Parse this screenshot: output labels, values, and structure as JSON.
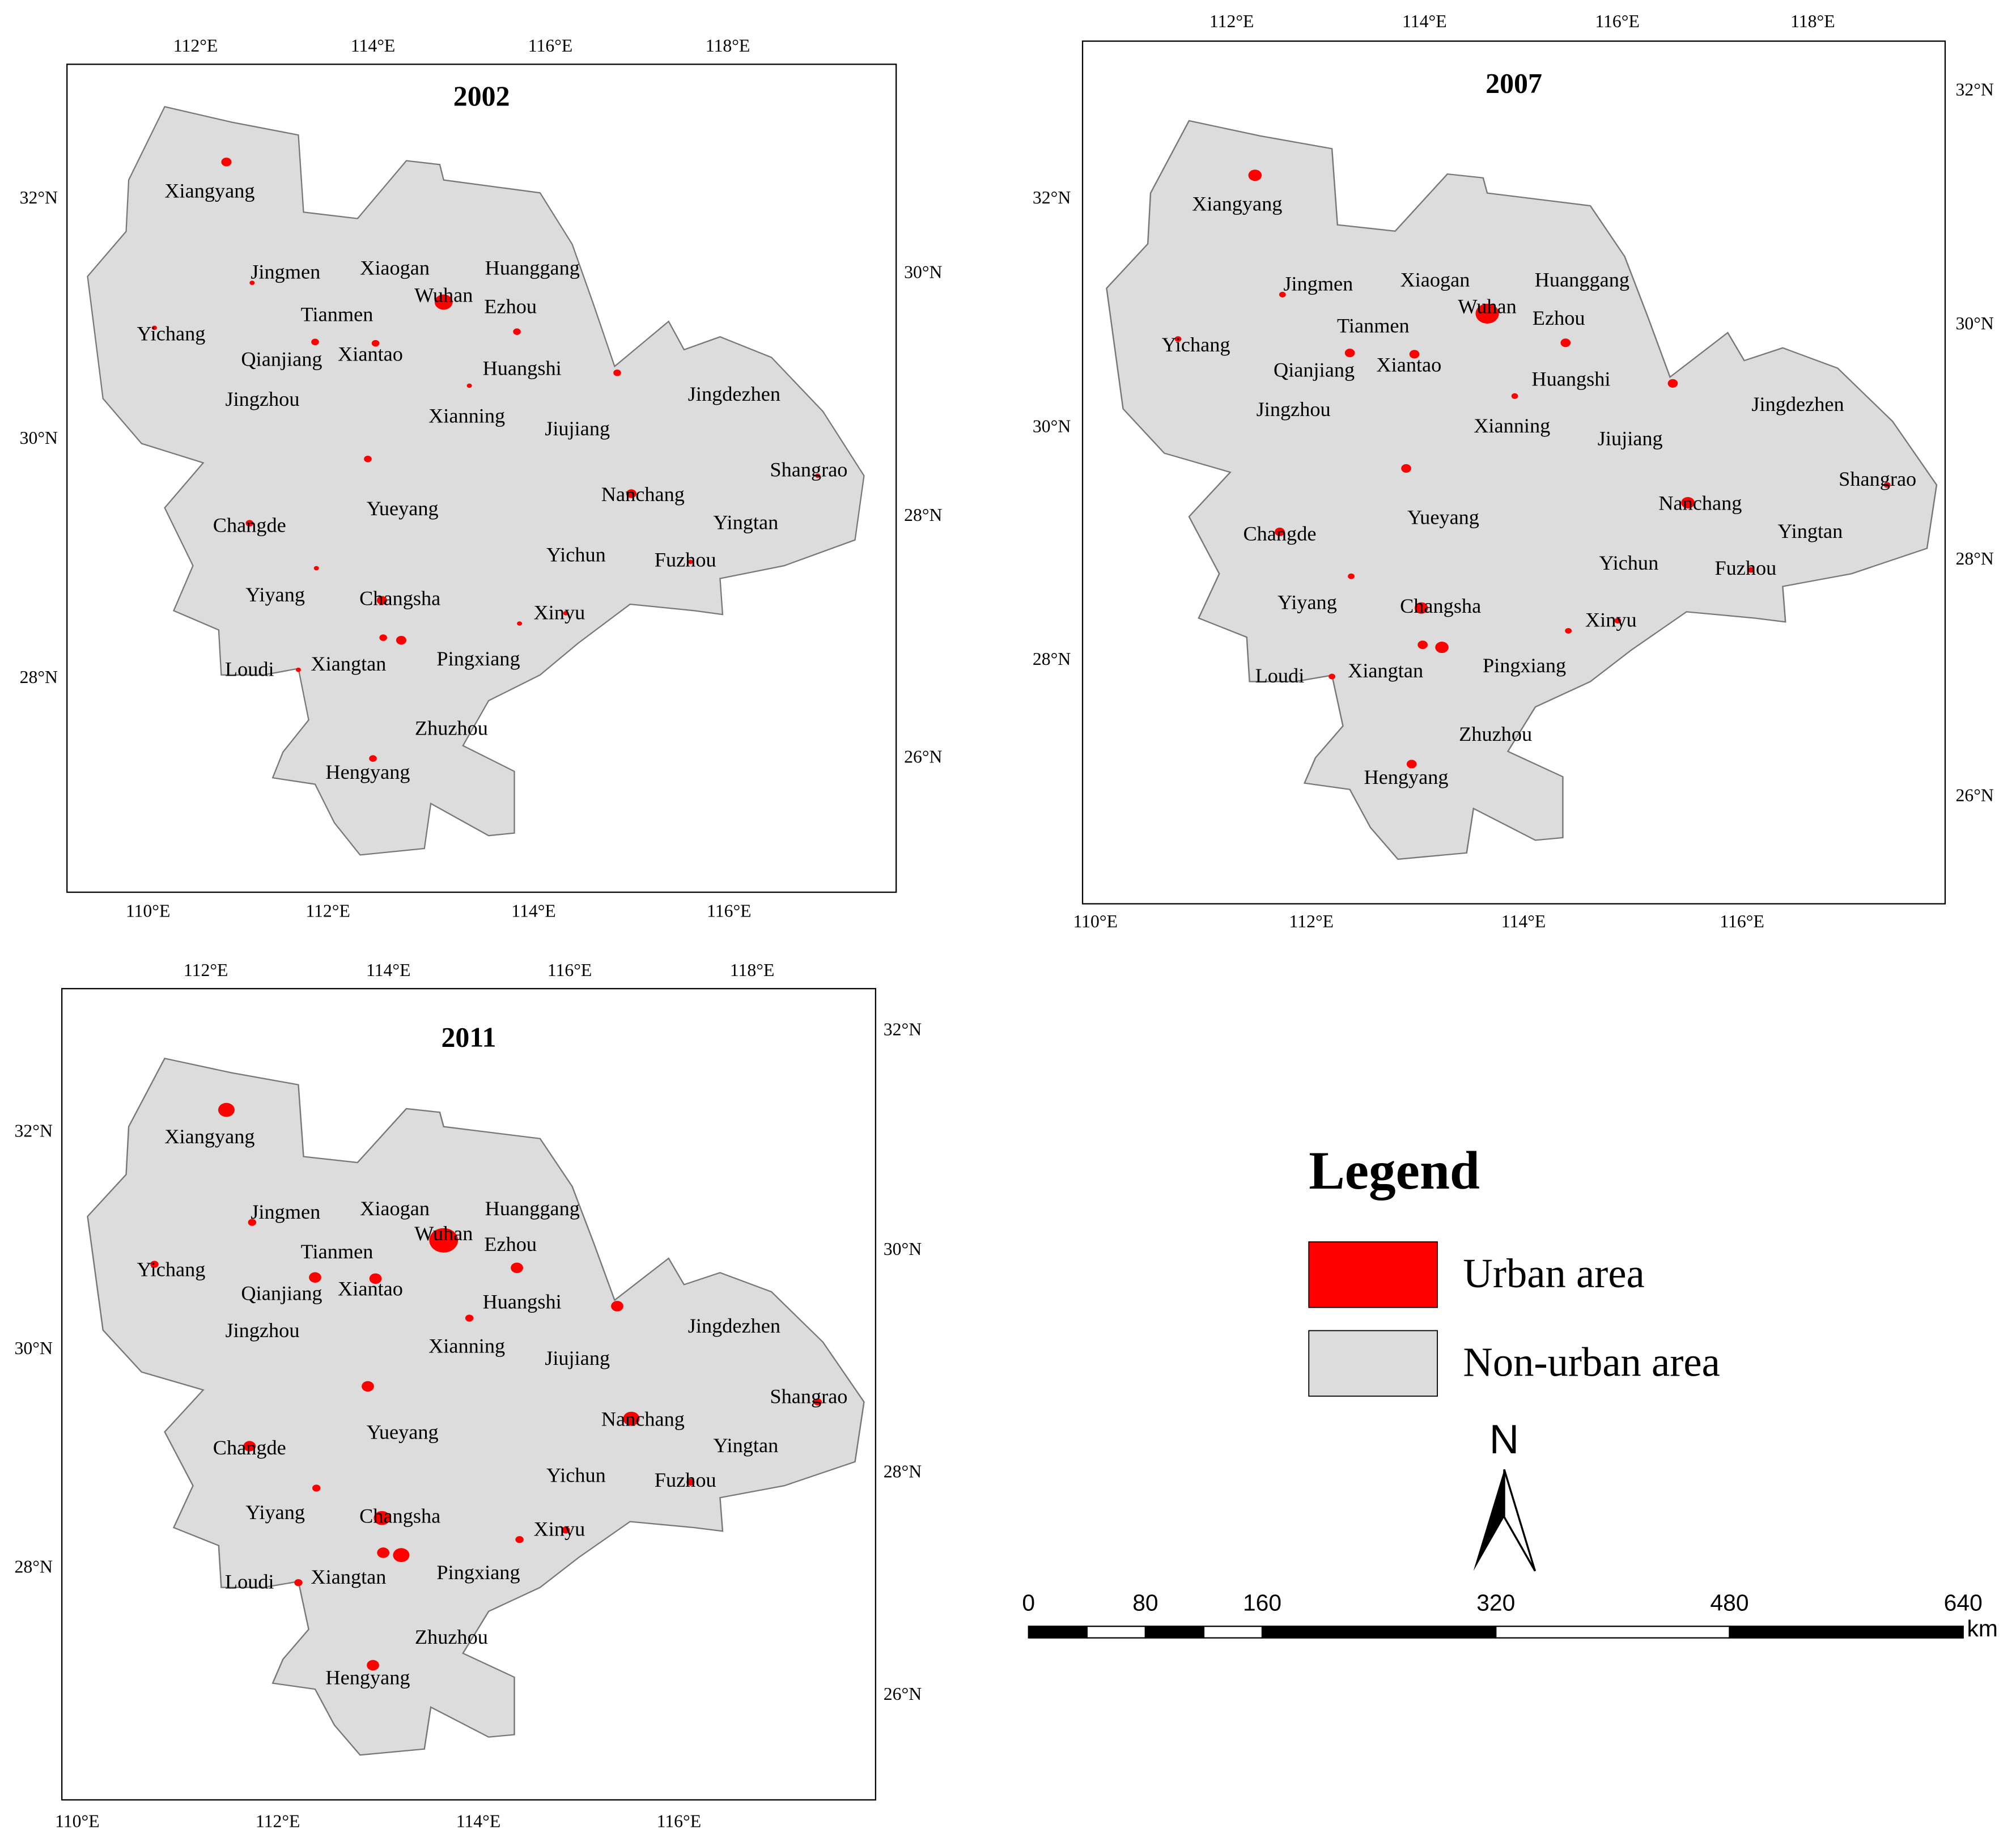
{
  "panels": [
    {
      "title": "2002",
      "top_labels": [
        "112°E",
        "114°E",
        "116°E",
        "118°E"
      ],
      "bottom_labels": [
        "110°E",
        "112°E",
        "114°E",
        "116°E"
      ],
      "left_labels": [
        "32°N",
        "30°N",
        "28°N"
      ],
      "right_labels": [
        "30°N",
        "28°N",
        "26°N"
      ],
      "cities": [
        "Xiangyang",
        "Jingmen",
        "Xiaogan",
        "Huanggang",
        "Yichang",
        "Tianmen",
        "Wuhan",
        "Ezhou",
        "Qianjiang",
        "Xiantao",
        "Huangshi",
        "Jingzhou",
        "Xianning",
        "Jiujiang",
        "Jingdezhen",
        "Shangrao",
        "Changde",
        "Yueyang",
        "Nanchang",
        "Yingtan",
        "Yichun",
        "Fuzhou",
        "Yiyang",
        "Changsha",
        "Xinyu",
        "Loudi",
        "Xiangtan",
        "Pingxiang",
        "Zhuzhou",
        "Hengyang"
      ]
    },
    {
      "title": "2007",
      "top_labels": [
        "112°E",
        "114°E",
        "116°E",
        "118°E"
      ],
      "bottom_labels": [
        "110°E",
        "112°E",
        "114°E",
        "116°E"
      ],
      "left_labels": [
        "32°N",
        "30°N",
        "28°N"
      ],
      "right_labels": [
        "32°N",
        "30°N",
        "28°N",
        "26°N"
      ],
      "cities": [
        "Xiangyang",
        "Jingmen",
        "Xiaogan",
        "Huanggang",
        "Yichang",
        "Tianmen",
        "Wuhan",
        "Ezhou",
        "Qianjiang",
        "Xiantao",
        "Huangshi",
        "Jingzhou",
        "Xianning",
        "Jiujiang",
        "Jingdezhen",
        "Shangrao",
        "Changde",
        "Yueyang",
        "Nanchang",
        "Yingtan",
        "Yichun",
        "Fuzhou",
        "Yiyang",
        "Changsha",
        "Xinyu",
        "Loudi",
        "Xiangtan",
        "Pingxiang",
        "Zhuzhou",
        "Hengyang"
      ]
    },
    {
      "title": "2011",
      "top_labels": [
        "112°E",
        "114°E",
        "116°E",
        "118°E"
      ],
      "bottom_labels": [
        "110°E",
        "112°E",
        "114°E",
        "116°E"
      ],
      "left_labels": [
        "32°N",
        "30°N",
        "28°N"
      ],
      "right_labels": [
        "32°N",
        "30°N",
        "28°N",
        "26°N"
      ],
      "cities": [
        "Xiangyang",
        "Jingmen",
        "Xiaogan",
        "Huanggang",
        "Yichang",
        "Tianmen",
        "Wuhan",
        "Ezhou",
        "Qianjiang",
        "Xiantao",
        "Huangshi",
        "Jingzhou",
        "Xianning",
        "Jiujiang",
        "Jingdezhen",
        "Shangrao",
        "Changde",
        "Yueyang",
        "Nanchang",
        "Yingtan",
        "Yichun",
        "Fuzhou",
        "Yiyang",
        "Changsha",
        "Xinyu",
        "Loudi",
        "Xiangtan",
        "Pingxiang",
        "Zhuzhou",
        "Hengyang"
      ]
    }
  ],
  "legend": {
    "title": "Legend",
    "items": [
      {
        "label": "Urban area",
        "color": "#ff0000"
      },
      {
        "label": "Non-urban area",
        "color": "#dcdcdc"
      }
    ]
  },
  "north_arrow": "N",
  "scale_bar": {
    "ticks": [
      0,
      80,
      160,
      320,
      480,
      640
    ],
    "unit": "km"
  }
}
